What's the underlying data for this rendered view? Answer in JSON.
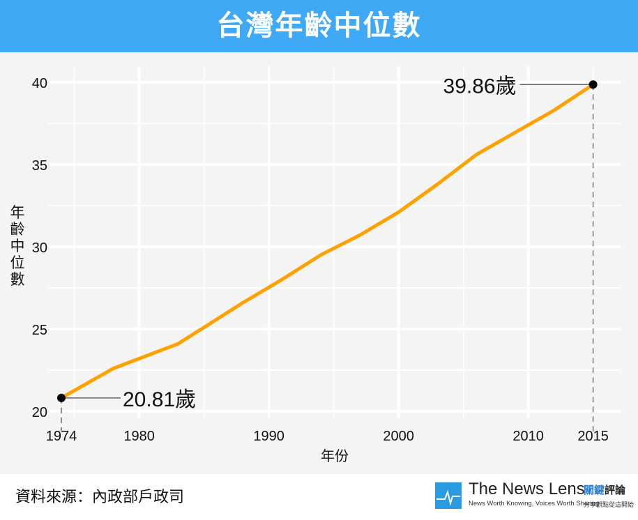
{
  "header": {
    "title": "台灣年齡中位數"
  },
  "footer": {
    "source": "資料來源：內政部戶政司"
  },
  "logo": {
    "name": "The News Lens",
    "tagline": "News Worth Knowing, Voices Worth Sharing",
    "cn_name_blue": "關鍵",
    "cn_name_black": "評論",
    "cn_tagline": "分享觀點從這開始"
  },
  "colors": {
    "header": "#3fa9f5",
    "line": "#ffa200",
    "background": "#f4f4f4"
  },
  "chart_data": {
    "type": "line",
    "title": "台灣年齡中位數",
    "xlabel": "年份",
    "ylabel": "年齡中位數",
    "xlim": [
      1972,
      2018
    ],
    "ylim": [
      20,
      41
    ],
    "xticks": [
      1974,
      1980,
      1990,
      2000,
      2010,
      2015
    ],
    "yticks": [
      20,
      25,
      30,
      35,
      40
    ],
    "grid": true,
    "series": [
      {
        "name": "年齡中位數",
        "x": [
          1974,
          1978,
          1983,
          1986,
          1988,
          1991,
          1994,
          1997,
          2000,
          2003,
          2006,
          2010,
          2012,
          2015
        ],
        "y": [
          20.81,
          22.6,
          24.1,
          25.6,
          26.6,
          28.0,
          29.5,
          30.7,
          32.1,
          33.8,
          35.6,
          37.4,
          38.3,
          39.86
        ]
      }
    ],
    "annotations": [
      {
        "x": 1974,
        "y": 20.81,
        "label": "20.81歲"
      },
      {
        "x": 2015,
        "y": 39.86,
        "label": "39.86歲"
      }
    ]
  }
}
